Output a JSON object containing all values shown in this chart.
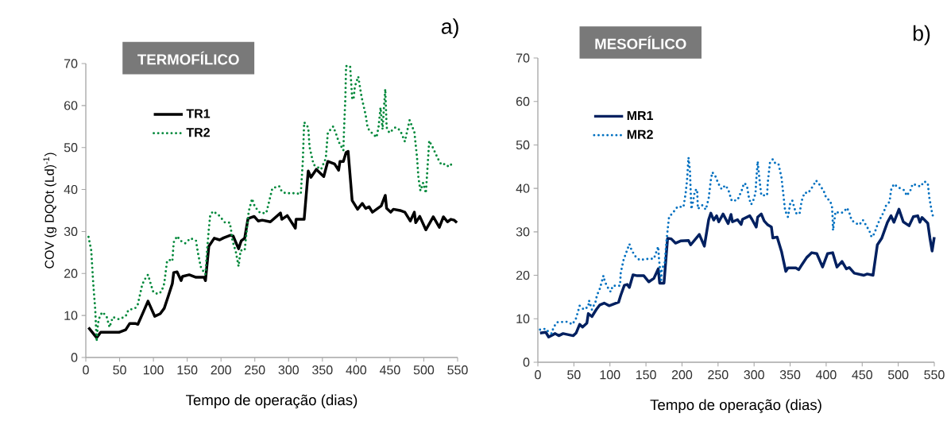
{
  "chart_data": [
    {
      "type": "line",
      "title": "TERMOFÍLICO",
      "xlabel": "Tempo de operação (dias)",
      "ylabel": "COV (g DQOt (Ld)$^{-1}$)",
      "annotations": [
        "a)"
      ],
      "xlim": [
        0,
        550
      ],
      "ylim": [
        0,
        70
      ],
      "xticks": [
        0,
        50,
        100,
        150,
        200,
        250,
        300,
        350,
        400,
        450,
        500,
        550
      ],
      "yticks": [
        0,
        10,
        20,
        30,
        40,
        50,
        60,
        70
      ],
      "grid": false,
      "legend": "top left",
      "marker": "none",
      "series": [
        {
          "name": "TR1",
          "color": "#000000",
          "line_style": "solid",
          "x": [
            4,
            16,
            22,
            49,
            59,
            65,
            73,
            77,
            85,
            92,
            102,
            110,
            116,
            122,
            128,
            130,
            135,
            141,
            143,
            153,
            163,
            175,
            177,
            182,
            190,
            198,
            204,
            214,
            218,
            226,
            230,
            235,
            240,
            249,
            255,
            261,
            273,
            288,
            290,
            298,
            310,
            311,
            323,
            329,
            333,
            341,
            352,
            358,
            368,
            374,
            376,
            381,
            385,
            388,
            394,
            402,
            409,
            414,
            419,
            424,
            437,
            443,
            445,
            451,
            455,
            465,
            472,
            480,
            486,
            488,
            494,
            503,
            514,
            523,
            529,
            535,
            540,
            545,
            549
          ],
          "values": [
            7.1,
            4.7,
            6.0,
            6.0,
            6.6,
            8.1,
            8.1,
            7.9,
            10.8,
            13.4,
            9.8,
            10.4,
            11.7,
            14.6,
            17.6,
            20.2,
            20.4,
            18.3,
            19.3,
            19.7,
            19.1,
            19.1,
            18.3,
            26.5,
            28.4,
            28.0,
            28.5,
            29.1,
            28.9,
            25.9,
            27.8,
            28.4,
            33.1,
            33.6,
            32.5,
            32.7,
            32.3,
            34.4,
            32.9,
            33.8,
            30.8,
            32.9,
            32.9,
            44.4,
            42.9,
            44.8,
            43.1,
            46.7,
            46.1,
            44.6,
            46.7,
            46.7,
            48.8,
            49.1,
            37.4,
            35.3,
            36.7,
            35.5,
            35.9,
            34.6,
            36.1,
            38.6,
            35.5,
            34.6,
            35.3,
            35.0,
            34.6,
            32.5,
            34.6,
            32.1,
            33.6,
            30.4,
            33.5,
            31.0,
            33.5,
            32.3,
            32.9,
            32.7,
            32.1
          ]
        },
        {
          "name": "TR2",
          "color": "#00883a",
          "line_style": "dotted",
          "x": [
            4,
            8,
            11,
            14,
            16,
            18,
            21,
            25,
            31,
            35,
            40,
            49,
            59,
            63,
            73,
            77,
            83,
            86,
            92,
            97,
            100,
            107,
            112,
            116,
            120,
            123,
            128,
            130,
            135,
            140,
            147,
            155,
            163,
            166,
            170,
            175,
            177,
            179,
            182,
            184,
            188,
            196,
            206,
            213,
            215,
            217,
            222,
            226,
            229,
            235,
            238,
            241,
            246,
            250,
            258,
            267,
            276,
            286,
            290,
            296,
            311,
            318,
            321,
            323,
            329,
            331,
            337,
            348,
            355,
            358,
            366,
            371,
            374,
            381,
            382,
            384,
            385,
            391,
            394,
            396,
            398,
            403,
            408,
            414,
            417,
            423,
            430,
            433,
            436,
            439,
            441,
            443,
            445,
            449,
            458,
            465,
            472,
            474,
            479,
            486,
            490,
            492,
            495,
            499,
            503,
            505,
            508,
            513,
            521,
            526,
            532,
            537,
            544
          ],
          "values": [
            28.7,
            25.5,
            17.6,
            11.3,
            3.8,
            8.1,
            10.0,
            10.8,
            9.6,
            7.2,
            9.6,
            9.1,
            9.8,
            11.3,
            11.7,
            12.7,
            17.0,
            18.3,
            19.7,
            17.0,
            15.5,
            15.1,
            15.7,
            17.6,
            22.7,
            23.3,
            22.9,
            27.4,
            28.9,
            27.8,
            27.2,
            28.4,
            27.8,
            24.8,
            21.6,
            20.2,
            19.8,
            24.6,
            30.6,
            33.8,
            34.8,
            34.0,
            32.1,
            32.1,
            30.2,
            27.8,
            25.1,
            21.7,
            25.5,
            25.5,
            30.2,
            34.8,
            37.8,
            35.9,
            34.4,
            34.4,
            40.3,
            40.8,
            39.5,
            39.1,
            39.1,
            38.9,
            46.7,
            56.0,
            54.8,
            50.1,
            45.9,
            44.8,
            47.4,
            53.5,
            55.0,
            52.9,
            51.4,
            49.3,
            54.3,
            62.0,
            69.4,
            69.4,
            61.8,
            61.4,
            64.5,
            66.9,
            62.0,
            57.7,
            54.6,
            53.5,
            52.4,
            54.8,
            59.5,
            54.3,
            59.4,
            63.9,
            54.8,
            53.5,
            54.8,
            54.1,
            51.4,
            52.9,
            56.5,
            53.7,
            47.6,
            42.9,
            39.7,
            41.6,
            39.1,
            44.0,
            51.6,
            50.1,
            47.3,
            45.9,
            46.1,
            45.4,
            46.5
          ]
        }
      ]
    },
    {
      "type": "line",
      "title": "MESOFÍLICO",
      "xlabel": "Tempo de operação (dias)",
      "annotations": [
        "b)"
      ],
      "xlim": [
        0,
        550
      ],
      "ylim": [
        0,
        70
      ],
      "xticks": [
        0,
        50,
        100,
        150,
        200,
        250,
        300,
        350,
        400,
        450,
        500,
        550
      ],
      "yticks": [
        0,
        10,
        20,
        30,
        40,
        50,
        60,
        70
      ],
      "grid": false,
      "legend": "top left",
      "marker": "none",
      "series": [
        {
          "name": "MR1",
          "color": "#002060",
          "line_style": "solid",
          "x": [
            3,
            11,
            15,
            24,
            29,
            35,
            49,
            53,
            58,
            62,
            68,
            70,
            75,
            81,
            86,
            92,
            99,
            112,
            115,
            120,
            124,
            127,
            132,
            138,
            147,
            154,
            161,
            167,
            169,
            175,
            180,
            185,
            191,
            198,
            209,
            212,
            224,
            231,
            237,
            240,
            244,
            248,
            251,
            257,
            264,
            268,
            270,
            277,
            282,
            284,
            294,
            297,
            303,
            305,
            310,
            314,
            319,
            324,
            326,
            332,
            338,
            344,
            347,
            358,
            362,
            365,
            373,
            380,
            387,
            395,
            402,
            409,
            415,
            422,
            428,
            432,
            439,
            452,
            457,
            465,
            471,
            477,
            485,
            490,
            494,
            501,
            507,
            515,
            521,
            527,
            530,
            533,
            541,
            544,
            547,
            550
          ],
          "values": [
            6.7,
            6.9,
            5.8,
            6.6,
            6.1,
            6.6,
            6.1,
            6.7,
            8.7,
            8.1,
            9.0,
            11.2,
            10.5,
            12.1,
            13.2,
            13.6,
            13.0,
            13.8,
            15.4,
            17.7,
            17.9,
            17.2,
            20.1,
            19.9,
            19.9,
            18.5,
            19.3,
            21.5,
            18.2,
            18.2,
            28.5,
            28.4,
            27.4,
            27.9,
            28.0,
            27.0,
            29.4,
            26.7,
            32.8,
            34.3,
            32.7,
            33.7,
            32.3,
            34.1,
            31.9,
            34.0,
            32.3,
            32.8,
            31.7,
            32.9,
            33.7,
            32.9,
            31.1,
            33.4,
            34.1,
            32.5,
            31.6,
            31.1,
            28.6,
            28.8,
            25.5,
            20.9,
            21.7,
            21.7,
            21.3,
            22.1,
            24.1,
            25.2,
            25.0,
            21.9,
            25.0,
            25.2,
            21.9,
            23.2,
            21.5,
            21.8,
            20.5,
            20.0,
            20.3,
            20.0,
            27.0,
            28.5,
            32.2,
            33.7,
            32.2,
            35.2,
            32.3,
            31.4,
            33.5,
            33.7,
            32.2,
            33.3,
            32.0,
            28.5,
            25.6,
            28.8
          ]
        },
        {
          "name": "MR2",
          "color": "#0070c0",
          "line_style": "dotted",
          "x": [
            3,
            11,
            15,
            19,
            22,
            27,
            40,
            48,
            53,
            58,
            64,
            70,
            71,
            75,
            80,
            82,
            86,
            91,
            93,
            98,
            101,
            104,
            114,
            115,
            119,
            127,
            130,
            135,
            141,
            154,
            161,
            167,
            168,
            171,
            172,
            176,
            179,
            182,
            187,
            194,
            202,
            205,
            207,
            209,
            211,
            212,
            213,
            215,
            218,
            221,
            222,
            228,
            233,
            237,
            240,
            242,
            247,
            250,
            255,
            260,
            264,
            269,
            277,
            283,
            286,
            290,
            293,
            296,
            299,
            302,
            303,
            305,
            306,
            308,
            310,
            318,
            319,
            322,
            326,
            330,
            334,
            338,
            341,
            343,
            347,
            350,
            353,
            358,
            363,
            366,
            370,
            375,
            382,
            386,
            392,
            397,
            400,
            405,
            408,
            409,
            409.5,
            411,
            413,
            419,
            424,
            429,
            433,
            435,
            441,
            446,
            451,
            455,
            460,
            463,
            467,
            470,
            474,
            480,
            483,
            488,
            490,
            494,
            500,
            508,
            512,
            517,
            520,
            524,
            531,
            536,
            541,
            543,
            544.5,
            546,
            548
          ],
          "values": [
            7.5,
            7.7,
            6.9,
            6.6,
            8.1,
            9.2,
            9.3,
            8.7,
            10.1,
            13.0,
            12.1,
            12.8,
            14.2,
            12.1,
            13.9,
            15.4,
            16.9,
            19.9,
            18.5,
            16.9,
            16.2,
            17.6,
            17.6,
            20.6,
            23.6,
            27.2,
            25.8,
            24.4,
            23.5,
            23.8,
            23.8,
            26.6,
            23.9,
            18.9,
            21.3,
            22.9,
            28.8,
            33.4,
            34.3,
            35.8,
            35.7,
            38.8,
            41.9,
            47.1,
            44.1,
            39.5,
            35.2,
            36.7,
            39.5,
            39.8,
            35.3,
            36.1,
            35.1,
            37.7,
            41.9,
            43.7,
            42.6,
            41.2,
            39.8,
            40.7,
            39.8,
            37.1,
            37.3,
            39.6,
            41.2,
            40.7,
            37.7,
            36.3,
            37.3,
            38.9,
            41.9,
            46.2,
            44.4,
            41.3,
            38.4,
            38.4,
            41.3,
            45.9,
            46.7,
            45.6,
            45.5,
            42.5,
            38.0,
            34.9,
            33.4,
            36.4,
            37.2,
            34.3,
            34.1,
            37.1,
            39.0,
            38.9,
            40.6,
            41.8,
            40.6,
            39.2,
            37.8,
            37.2,
            36.0,
            33.1,
            30.3,
            32.2,
            34.6,
            34.3,
            34.5,
            35.5,
            34.0,
            32.7,
            32.0,
            31.6,
            32.7,
            31.6,
            30.2,
            28.8,
            29.6,
            31.1,
            32.7,
            34.6,
            36.0,
            36.9,
            39.6,
            41.0,
            40.2,
            39.6,
            38.3,
            39.6,
            41.0,
            40.8,
            40.4,
            41.6,
            41.2,
            38.0,
            36.6,
            35.1,
            33.7
          ]
        }
      ]
    }
  ]
}
